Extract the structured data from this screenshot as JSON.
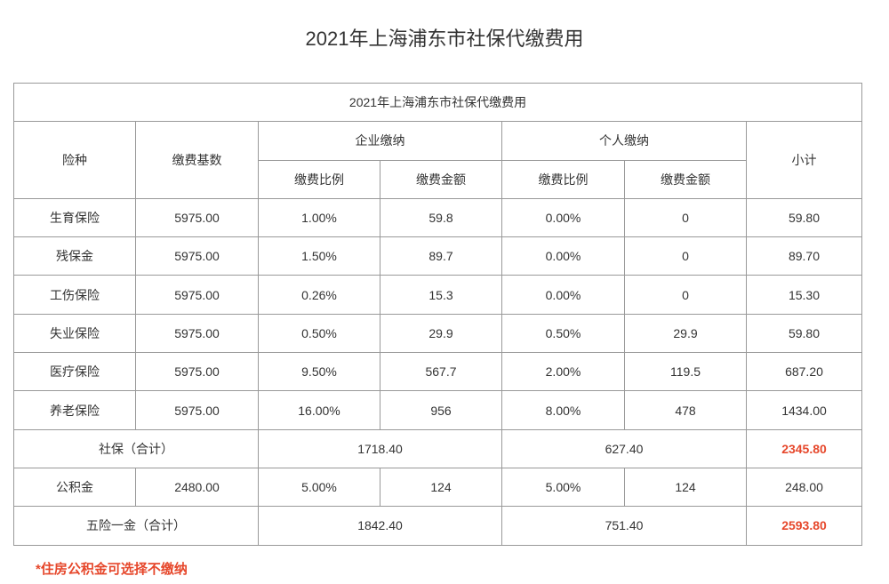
{
  "page": {
    "title": "2021年上海浦东市社保代缴费用"
  },
  "table": {
    "caption": "2021年上海浦东市社保代缴费用",
    "header": {
      "insurance_type": "险种",
      "base": "缴费基数",
      "company_group": "企业缴纳",
      "personal_group": "个人缴纳",
      "subtotal": "小计",
      "rate": "缴费比例",
      "amount": "缴费金额"
    },
    "rows": [
      {
        "type": "生育保险",
        "base": "5975.00",
        "company_rate": "1.00%",
        "company_amount": "59.8",
        "personal_rate": "0.00%",
        "personal_amount": "0",
        "subtotal": "59.80"
      },
      {
        "type": "残保金",
        "base": "5975.00",
        "company_rate": "1.50%",
        "company_amount": "89.7",
        "personal_rate": "0.00%",
        "personal_amount": "0",
        "subtotal": "89.70"
      },
      {
        "type": "工伤保险",
        "base": "5975.00",
        "company_rate": "0.26%",
        "company_amount": "15.3",
        "personal_rate": "0.00%",
        "personal_amount": "0",
        "subtotal": "15.30"
      },
      {
        "type": "失业保险",
        "base": "5975.00",
        "company_rate": "0.50%",
        "company_amount": "29.9",
        "personal_rate": "0.50%",
        "personal_amount": "29.9",
        "subtotal": "59.80"
      },
      {
        "type": "医疗保险",
        "base": "5975.00",
        "company_rate": "9.50%",
        "company_amount": "567.7",
        "personal_rate": "2.00%",
        "personal_amount": "119.5",
        "subtotal": "687.20"
      },
      {
        "type": "养老保险",
        "base": "5975.00",
        "company_rate": "16.00%",
        "company_amount": "956",
        "personal_rate": "8.00%",
        "personal_amount": "478",
        "subtotal": "1434.00"
      }
    ],
    "social_total": {
      "label": "社保（合计）",
      "company": "1718.40",
      "personal": "627.40",
      "subtotal": "2345.80"
    },
    "housing_fund": {
      "type": "公积金",
      "base": "2480.00",
      "company_rate": "5.00%",
      "company_amount": "124",
      "personal_rate": "5.00%",
      "personal_amount": "124",
      "subtotal": "248.00"
    },
    "grand_total": {
      "label": "五险一金（合计）",
      "company": "1842.40",
      "personal": "751.40",
      "subtotal": "2593.80"
    }
  },
  "note": "*住房公积金可选择不缴纳",
  "colors": {
    "text": "#333333",
    "border": "#999999",
    "highlight": "#e6472b"
  }
}
